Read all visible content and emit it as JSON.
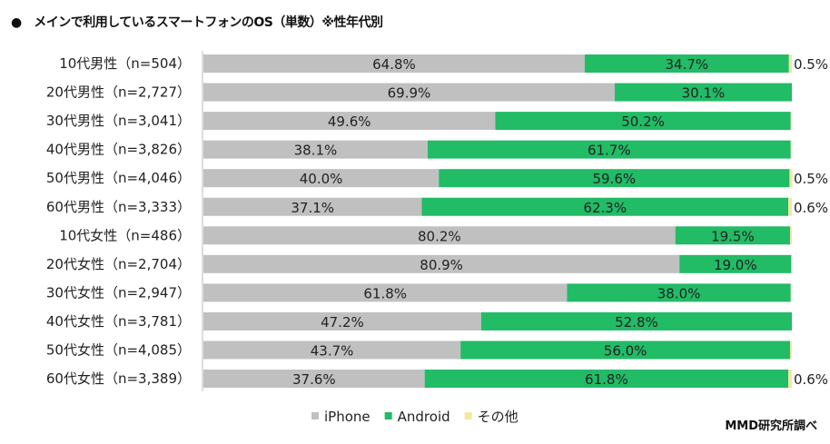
{
  "chart_data": {
    "type": "bar",
    "orientation": "horizontal",
    "stacked": true,
    "title": "●　メインで利用しているスマートフォンのOS（単数）※性年代別",
    "source": "MMD研究所調べ",
    "categories": [
      "10代男性（n=504）",
      "20代男性（n=2,727）",
      "30代男性（n=3,041）",
      "40代男性（n=3,826）",
      "50代男性（n=4,046）",
      "60代男性（n=3,333）",
      "10代女性（n=486）",
      "20代女性（n=2,704）",
      "30代女性（n=2,947）",
      "40代女性（n=3,781）",
      "50代女性（n=4,085）",
      "60代女性（n=3,389）"
    ],
    "series": [
      {
        "name": "iPhone",
        "color": "#c0c0c0",
        "values": [
          64.8,
          69.9,
          49.6,
          38.1,
          40.0,
          37.1,
          80.2,
          80.9,
          61.8,
          47.2,
          43.7,
          37.6
        ],
        "labels": [
          "64.8%",
          "69.9%",
          "49.6%",
          "38.1%",
          "40.0%",
          "37.1%",
          "80.2%",
          "80.9%",
          "61.8%",
          "47.2%",
          "43.7%",
          "37.6%"
        ]
      },
      {
        "name": "Android",
        "color": "#22bb66",
        "values": [
          34.7,
          30.1,
          50.2,
          61.7,
          59.6,
          62.3,
          19.5,
          19.0,
          38.0,
          52.8,
          56.0,
          61.8
        ],
        "labels": [
          "34.7%",
          "30.1%",
          "50.2%",
          "61.7%",
          "59.6%",
          "62.3%",
          "19.5%",
          "19.0%",
          "38.0%",
          "52.8%",
          "56.0%",
          "61.8%"
        ]
      },
      {
        "name": "その他",
        "color": "#f0e8a0",
        "values": [
          0.5,
          0.0,
          0.2,
          0.2,
          0.5,
          0.6,
          0.3,
          0.1,
          0.2,
          0.0,
          0.3,
          0.6
        ],
        "labels": [
          "0.5%",
          null,
          null,
          null,
          "0.5%",
          "0.6%",
          null,
          null,
          null,
          null,
          null,
          "0.6%"
        ]
      }
    ],
    "xlim": [
      0,
      100
    ],
    "legend_position": "bottom",
    "grid": false
  }
}
